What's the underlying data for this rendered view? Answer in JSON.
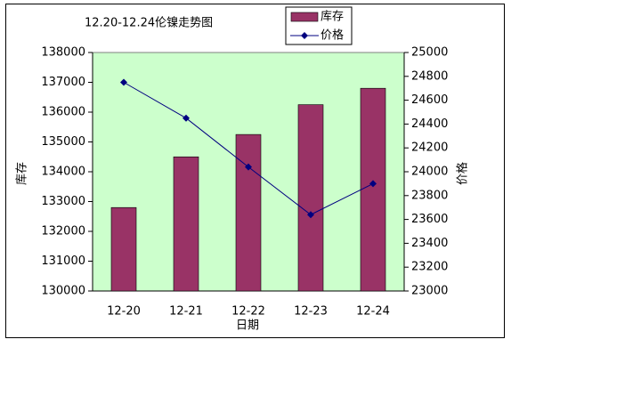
{
  "chart_data": {
    "type": "bar-line",
    "title": "12.20-12.24伦镍走势图",
    "x_label": "日期",
    "y_label": "库存",
    "y2_label": "价格",
    "categories": [
      "12-20",
      "12-21",
      "12-22",
      "12-23",
      "12-24"
    ],
    "series": [
      {
        "name": "库存",
        "type": "bar",
        "color": "#993366",
        "values": [
          132800,
          134500,
          135250,
          136250,
          136800
        ]
      },
      {
        "name": "价格",
        "type": "line",
        "axis": "y2",
        "color": "#000080",
        "values": [
          24750,
          24450,
          24040,
          23640,
          23900
        ]
      }
    ],
    "ylim": [
      130000,
      138000
    ],
    "yticks": [
      130000,
      131000,
      132000,
      133000,
      134000,
      135000,
      136000,
      137000,
      138000
    ],
    "y2lim": [
      23000,
      25000
    ],
    "y2ticks": [
      23000,
      23200,
      23400,
      23600,
      23800,
      24000,
      24200,
      24400,
      24600,
      24800,
      25000
    ],
    "plot_background": "#ccffcc",
    "grid": false,
    "legend": "top"
  }
}
